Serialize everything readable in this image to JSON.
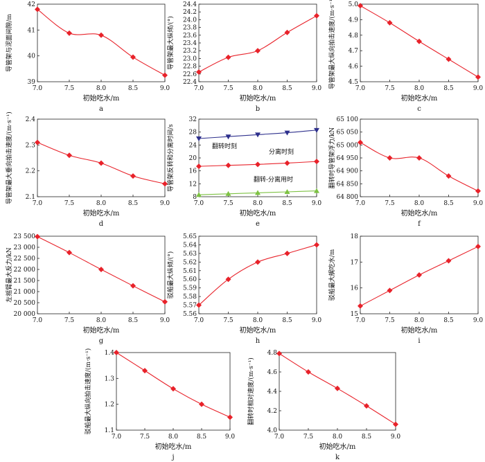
{
  "chart_data": [
    {
      "id": "a",
      "type": "line",
      "panel_label": "a",
      "xlabel": "初始吃水/m",
      "ylabel": "导管架与泥面间隙/m",
      "xlim": [
        7.0,
        9.0
      ],
      "ylim": [
        39,
        42
      ],
      "xticks": [
        "7.0",
        "7.5",
        "8.0",
        "8.5",
        "9.0"
      ],
      "yticks": [
        "39",
        "40",
        "41",
        "42"
      ],
      "series": [
        {
          "name": "间隙",
          "color": "#e8222a",
          "marker": "diamond",
          "x": [
            7.0,
            7.5,
            8.0,
            8.5,
            9.0
          ],
          "y": [
            41.8,
            40.88,
            40.8,
            39.95,
            39.25
          ]
        }
      ]
    },
    {
      "id": "b",
      "type": "line",
      "panel_label": "b",
      "xlabel": "初始吃水/m",
      "ylabel": "导管架最大纵倾/(°)",
      "xlim": [
        7.0,
        9.0
      ],
      "ylim": [
        22.4,
        24.4
      ],
      "xticks": [
        "7.0",
        "7.5",
        "8.0",
        "8.5",
        "9.0"
      ],
      "yticks": [
        "22.4",
        "22.6",
        "22.8",
        "23.0",
        "23.2",
        "23.4",
        "23.6",
        "23.8",
        "24.0",
        "24.2",
        "24.4"
      ],
      "series": [
        {
          "name": "纵倾",
          "color": "#e8222a",
          "marker": "diamond",
          "x": [
            7.0,
            7.5,
            8.0,
            8.5,
            9.0
          ],
          "y": [
            22.65,
            23.03,
            23.2,
            23.67,
            24.1
          ]
        }
      ]
    },
    {
      "id": "c",
      "type": "line",
      "panel_label": "c",
      "xlabel": "初始吃水/m",
      "ylabel": "导管架最大纵向拍击速度/(m·s⁻¹)",
      "xlim": [
        7.0,
        9.0
      ],
      "ylim": [
        4.5,
        5.0
      ],
      "xticks": [
        "7.0",
        "7.5",
        "8.0",
        "8.5",
        "9.0"
      ],
      "yticks": [
        "4.5",
        "4.6",
        "4.7",
        "4.8",
        "4.9",
        "5.0"
      ],
      "series": [
        {
          "name": "纵向拍击速度",
          "color": "#e8222a",
          "marker": "diamond",
          "x": [
            7.0,
            7.5,
            8.0,
            8.5,
            9.0
          ],
          "y": [
            4.99,
            4.88,
            4.76,
            4.645,
            4.53
          ]
        }
      ]
    },
    {
      "id": "d",
      "type": "line",
      "panel_label": "d",
      "xlabel": "初始吃水/m",
      "ylabel": "导管架最大垂向拍击速度/(m·s⁻¹)",
      "xlim": [
        7.0,
        9.0
      ],
      "ylim": [
        2.1,
        2.4
      ],
      "xticks": [
        "7.0",
        "7.5",
        "8.0",
        "8.5",
        "9.0"
      ],
      "yticks": [
        "2.1",
        "2.2",
        "2.3",
        "2.4"
      ],
      "series": [
        {
          "name": "垂向拍击速度",
          "color": "#e8222a",
          "marker": "diamond",
          "x": [
            7.0,
            7.5,
            8.0,
            8.5,
            9.0
          ],
          "y": [
            2.31,
            2.26,
            2.23,
            2.18,
            2.15
          ]
        }
      ]
    },
    {
      "id": "e",
      "type": "line",
      "panel_label": "e",
      "xlabel": "初始吃水/m",
      "ylabel": "导管架反转和分离时间/s",
      "xlim": [
        7.0,
        9.0
      ],
      "ylim": [
        8,
        32
      ],
      "xticks": [
        "7.0",
        "7.5",
        "8.0",
        "8.5",
        "9.0"
      ],
      "yticks": [
        "8",
        "12",
        "16",
        "20",
        "24",
        "28",
        "32"
      ],
      "series": [
        {
          "name": "分离时刻",
          "color": "#2d2f8c",
          "marker": "triangle-down",
          "x": [
            7.0,
            7.5,
            8.0,
            8.5,
            9.0
          ],
          "y": [
            26.0,
            26.6,
            27.2,
            27.8,
            28.6
          ]
        },
        {
          "name": "翻转时刻",
          "color": "#e8222a",
          "marker": "diamond",
          "x": [
            7.0,
            7.5,
            8.0,
            8.5,
            9.0
          ],
          "y": [
            17.4,
            17.7,
            18.0,
            18.4,
            18.9
          ]
        },
        {
          "name": "翻转-分离用时",
          "color": "#7dc242",
          "marker": "triangle-up",
          "x": [
            7.0,
            7.5,
            8.0,
            8.5,
            9.0
          ],
          "y": [
            8.6,
            8.9,
            9.2,
            9.5,
            9.8
          ]
        }
      ],
      "annotations": [
        "翻转时刻",
        "分离时刻",
        "翻转-分离用时"
      ]
    },
    {
      "id": "f",
      "type": "line",
      "panel_label": "f",
      "xlabel": "初始吃水/m",
      "ylabel": "翻转时导管架浮力/kN",
      "xlim": [
        7.0,
        9.0
      ],
      "ylim": [
        64800,
        65100
      ],
      "xticks": [
        "7.0",
        "7.5",
        "8.0",
        "8.5",
        "9.0"
      ],
      "yticks": [
        "64 800",
        "64 850",
        "64 900",
        "64 950",
        "65 000",
        "65 050",
        "65 100"
      ],
      "series": [
        {
          "name": "浮力",
          "color": "#e8222a",
          "marker": "diamond",
          "x": [
            7.0,
            7.5,
            8.0,
            8.5,
            9.0
          ],
          "y": [
            65010,
            64950,
            64950,
            64880,
            64822
          ]
        }
      ]
    },
    {
      "id": "g",
      "type": "line",
      "panel_label": "g",
      "xlabel": "初始吃水/m",
      "ylabel": "左摇臂最大反力/kN",
      "xlim": [
        7.0,
        9.0
      ],
      "ylim": [
        20000,
        23500
      ],
      "xticks": [
        "7.0",
        "7.5",
        "8.0",
        "8.5",
        "9.0"
      ],
      "yticks": [
        "20 000",
        "20 500",
        "21 000",
        "21 500",
        "22 000",
        "22 500",
        "23 000",
        "23 500"
      ],
      "series": [
        {
          "name": "反力",
          "color": "#e8222a",
          "marker": "diamond",
          "x": [
            7.0,
            7.5,
            8.0,
            8.5,
            9.0
          ],
          "y": [
            23480,
            22760,
            22000,
            21260,
            20540
          ]
        }
      ]
    },
    {
      "id": "h",
      "type": "line",
      "panel_label": "h",
      "xlabel": "初始吃水/m",
      "ylabel": "驳船最大纵倾/(°)",
      "xlim": [
        7.0,
        9.0
      ],
      "ylim": [
        5.56,
        5.65
      ],
      "xticks": [
        "7.0",
        "7.5",
        "8.0",
        "8.5",
        "9.0"
      ],
      "yticks": [
        "5.56",
        "5.57",
        "5.58",
        "5.59",
        "5.60",
        "5.61",
        "5.62",
        "5.63",
        "5.64",
        "5.65"
      ],
      "series": [
        {
          "name": "驳船纵倾",
          "color": "#e8222a",
          "marker": "diamond",
          "x": [
            7.0,
            7.5,
            8.0,
            8.5,
            9.0
          ],
          "y": [
            5.57,
            5.6,
            5.62,
            5.63,
            5.64
          ]
        }
      ]
    },
    {
      "id": "i",
      "type": "line",
      "panel_label": "i",
      "xlabel": "初始吃水/m",
      "ylabel": "驳船最大艉吃水/m",
      "xlim": [
        7.0,
        9.0
      ],
      "ylim": [
        15,
        18
      ],
      "xticks": [
        "7.0",
        "7.5",
        "8.0",
        "8.5",
        "9.0"
      ],
      "yticks": [
        "15",
        "16",
        "17",
        "18"
      ],
      "series": [
        {
          "name": "艉吃水",
          "color": "#e8222a",
          "marker": "diamond",
          "x": [
            7.0,
            7.5,
            8.0,
            8.5,
            9.0
          ],
          "y": [
            15.3,
            15.9,
            16.5,
            17.05,
            17.6
          ]
        }
      ]
    },
    {
      "id": "j",
      "type": "line",
      "panel_label": "j",
      "xlabel": "初始吃水/m",
      "ylabel": "驳船最大纵向拍击速度/(m·s⁻¹)",
      "xlim": [
        7.0,
        9.0
      ],
      "ylim": [
        1.1,
        1.4
      ],
      "xticks": [
        "7.0",
        "7.5",
        "8.0",
        "8.5",
        "9.0"
      ],
      "yticks": [
        "1.1",
        "1.2",
        "1.3",
        "1.4"
      ],
      "series": [
        {
          "name": "驳船拍击速度",
          "color": "#e8222a",
          "marker": "diamond",
          "x": [
            7.0,
            7.5,
            8.0,
            8.5,
            9.0
          ],
          "y": [
            1.4,
            1.33,
            1.26,
            1.2,
            1.15
          ]
        }
      ]
    },
    {
      "id": "k",
      "type": "line",
      "panel_label": "k",
      "xlabel": "初始吃水/m",
      "ylabel": "翻转时相对速度/(m·s⁻¹)",
      "xlim": [
        7.0,
        9.0
      ],
      "ylim": [
        4.0,
        4.8
      ],
      "xticks": [
        "7.0",
        "7.5",
        "8.0",
        "8.5",
        "9.0"
      ],
      "yticks": [
        "4.0",
        "4.2",
        "4.4",
        "4.6",
        "4.8"
      ],
      "series": [
        {
          "name": "相对速度",
          "color": "#e8222a",
          "marker": "diamond",
          "x": [
            7.0,
            7.5,
            8.0,
            8.5,
            9.0
          ],
          "y": [
            4.79,
            4.6,
            4.43,
            4.25,
            4.06
          ]
        }
      ]
    }
  ]
}
